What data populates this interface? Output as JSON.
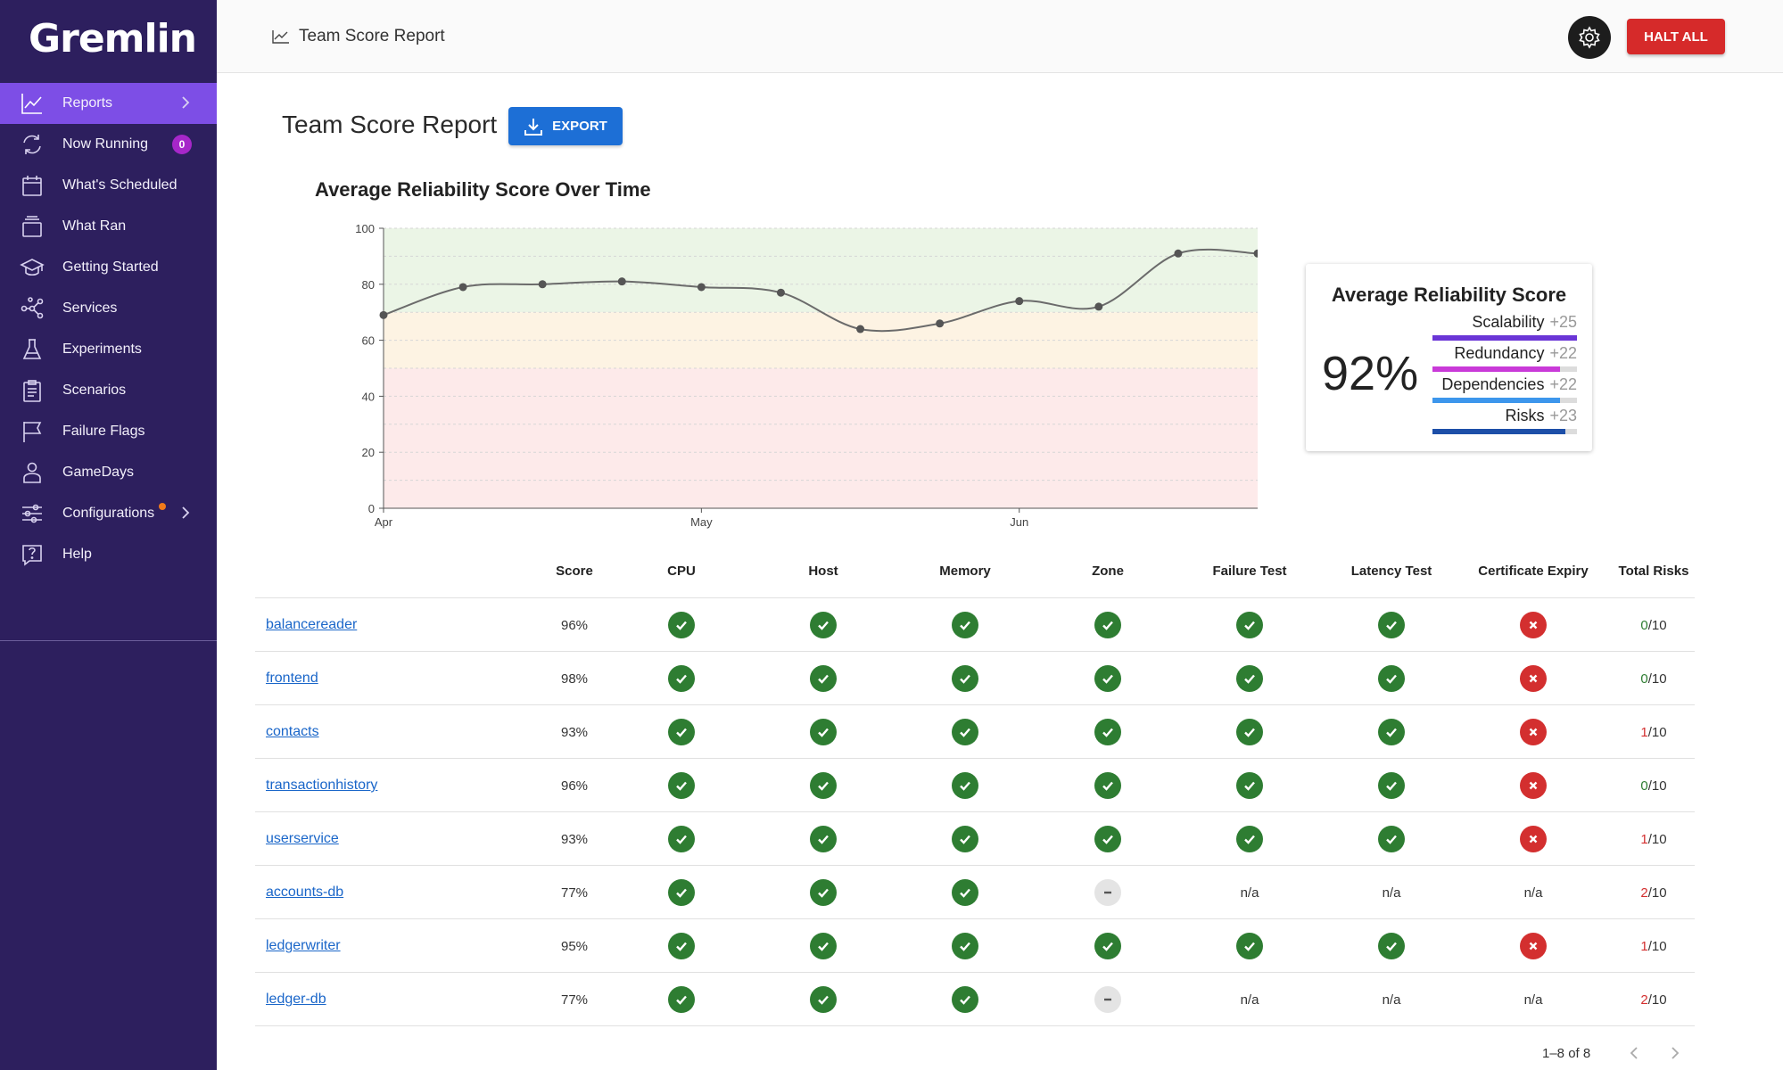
{
  "brand": "Gremlin",
  "nav": [
    {
      "label": "Reports",
      "icon": "chart-line-icon",
      "active": true,
      "chevron": true
    },
    {
      "label": "Now Running",
      "icon": "refresh-icon",
      "badge": "0"
    },
    {
      "label": "What's Scheduled",
      "icon": "calendar-icon"
    },
    {
      "label": "What Ran",
      "icon": "stack-icon"
    },
    {
      "label": "Getting Started",
      "icon": "graduation-cap-icon"
    },
    {
      "label": "Services",
      "icon": "network-icon"
    },
    {
      "label": "Experiments",
      "icon": "flask-icon"
    },
    {
      "label": "Scenarios",
      "icon": "clipboard-icon"
    },
    {
      "label": "Failure Flags",
      "icon": "flag-icon"
    },
    {
      "label": "GameDays",
      "icon": "person-icon"
    },
    {
      "label": "Configurations",
      "icon": "sliders-icon",
      "dot": true,
      "chevron": true
    },
    {
      "label": "Help",
      "icon": "help-icon"
    }
  ],
  "header": {
    "breadcrumb": "Team Score Report",
    "halt_label": "HALT ALL"
  },
  "page": {
    "title": "Team Score Report",
    "export_label": "EXPORT"
  },
  "chart_data": {
    "type": "line",
    "title": "Average Reliability Score Over Time",
    "ylim": [
      0,
      100
    ],
    "yticks": [
      0,
      20,
      40,
      60,
      80,
      100
    ],
    "xtick_labels": [
      "Apr",
      "May",
      "Jun"
    ],
    "xtick_index": [
      0,
      4,
      8
    ],
    "x": [
      "Apr",
      "",
      "",
      "",
      "May",
      "",
      "",
      "",
      "Jun",
      "",
      "",
      ""
    ],
    "values": [
      69,
      79,
      80,
      81,
      79,
      77,
      64,
      66,
      74,
      72,
      91,
      91
    ],
    "bands": [
      {
        "from": 70,
        "to": 100,
        "color": "#ebf5e6"
      },
      {
        "from": 50,
        "to": 70,
        "color": "#fdf3e3"
      },
      {
        "from": 0,
        "to": 50,
        "color": "#fdeaea"
      }
    ],
    "line_color": "#6b6b6b",
    "grid": true
  },
  "score_card": {
    "title": "Average Reliability Score",
    "score": "92%",
    "metrics": [
      {
        "label": "Scalability",
        "plus": "+25",
        "value": 1.0,
        "color": "#6a35d6"
      },
      {
        "label": "Redundancy",
        "plus": "+22",
        "value": 0.88,
        "color": "#c93ad8"
      },
      {
        "label": "Dependencies",
        "plus": "+22",
        "value": 0.88,
        "color": "#3d96ec"
      },
      {
        "label": "Risks",
        "plus": "+23",
        "value": 0.92,
        "color": "#1d4fa8"
      }
    ]
  },
  "table": {
    "columns": [
      "Score",
      "CPU",
      "Host",
      "Memory",
      "Zone",
      "Failure Test",
      "Latency Test",
      "Certificate Expiry",
      "Total Risks"
    ],
    "rows": [
      {
        "name": "balancereader",
        "score": "96%",
        "checks": [
          "pass",
          "pass",
          "pass",
          "pass",
          "pass",
          "pass",
          "fail"
        ],
        "risks": "0",
        "risks_total": "/10"
      },
      {
        "name": "frontend",
        "score": "98%",
        "checks": [
          "pass",
          "pass",
          "pass",
          "pass",
          "pass",
          "pass",
          "fail"
        ],
        "risks": "0",
        "risks_total": "/10"
      },
      {
        "name": "contacts",
        "score": "93%",
        "checks": [
          "pass",
          "pass",
          "pass",
          "pass",
          "pass",
          "pass",
          "fail"
        ],
        "risks": "1",
        "risks_total": "/10"
      },
      {
        "name": "transactionhistory",
        "score": "96%",
        "checks": [
          "pass",
          "pass",
          "pass",
          "pass",
          "pass",
          "pass",
          "fail"
        ],
        "risks": "0",
        "risks_total": "/10"
      },
      {
        "name": "userservice",
        "score": "93%",
        "checks": [
          "pass",
          "pass",
          "pass",
          "pass",
          "pass",
          "pass",
          "fail"
        ],
        "risks": "1",
        "risks_total": "/10"
      },
      {
        "name": "accounts-db",
        "score": "77%",
        "checks": [
          "pass",
          "pass",
          "pass",
          "na",
          "n/a",
          "n/a",
          "n/a"
        ],
        "risks": "2",
        "risks_total": "/10"
      },
      {
        "name": "ledgerwriter",
        "score": "95%",
        "checks": [
          "pass",
          "pass",
          "pass",
          "pass",
          "pass",
          "pass",
          "fail"
        ],
        "risks": "1",
        "risks_total": "/10"
      },
      {
        "name": "ledger-db",
        "score": "77%",
        "checks": [
          "pass",
          "pass",
          "pass",
          "na",
          "n/a",
          "n/a",
          "n/a"
        ],
        "risks": "2",
        "risks_total": "/10"
      }
    ]
  },
  "pagination": {
    "range": "1–8 of 8"
  }
}
